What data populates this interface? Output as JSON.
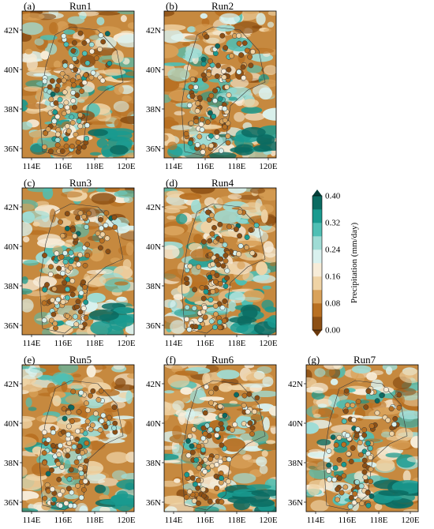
{
  "panels": [
    {
      "id": "a",
      "label": "(a)",
      "title": "Run1"
    },
    {
      "id": "b",
      "label": "(b)",
      "title": "Run2"
    },
    {
      "id": "c",
      "label": "(c)",
      "title": "Run3"
    },
    {
      "id": "d",
      "label": "(d)",
      "title": "Run4"
    },
    {
      "id": "e",
      "label": "(e)",
      "title": "Run5"
    },
    {
      "id": "f",
      "label": "(f)",
      "title": "Run6"
    },
    {
      "id": "g",
      "label": "(g)",
      "title": "Run7"
    }
  ],
  "axes": {
    "lat_ticks": [
      "42N",
      "40N",
      "38N",
      "36N"
    ],
    "lon_ticks": [
      "114E",
      "116E",
      "118E",
      "120E"
    ]
  },
  "colorbar": {
    "label": "Precipitation (mm/day)",
    "ticks": [
      "0.40",
      "0.32",
      "0.24",
      "0.16",
      "0.08",
      "0.00"
    ],
    "colors": [
      "#8c4f14",
      "#b87022",
      "#d9a25a",
      "#efd3a5",
      "#f7ecd8",
      "#d9f1ee",
      "#9fdcd5",
      "#4fbfb4",
      "#1a9a8f",
      "#0b6b61"
    ]
  }
}
